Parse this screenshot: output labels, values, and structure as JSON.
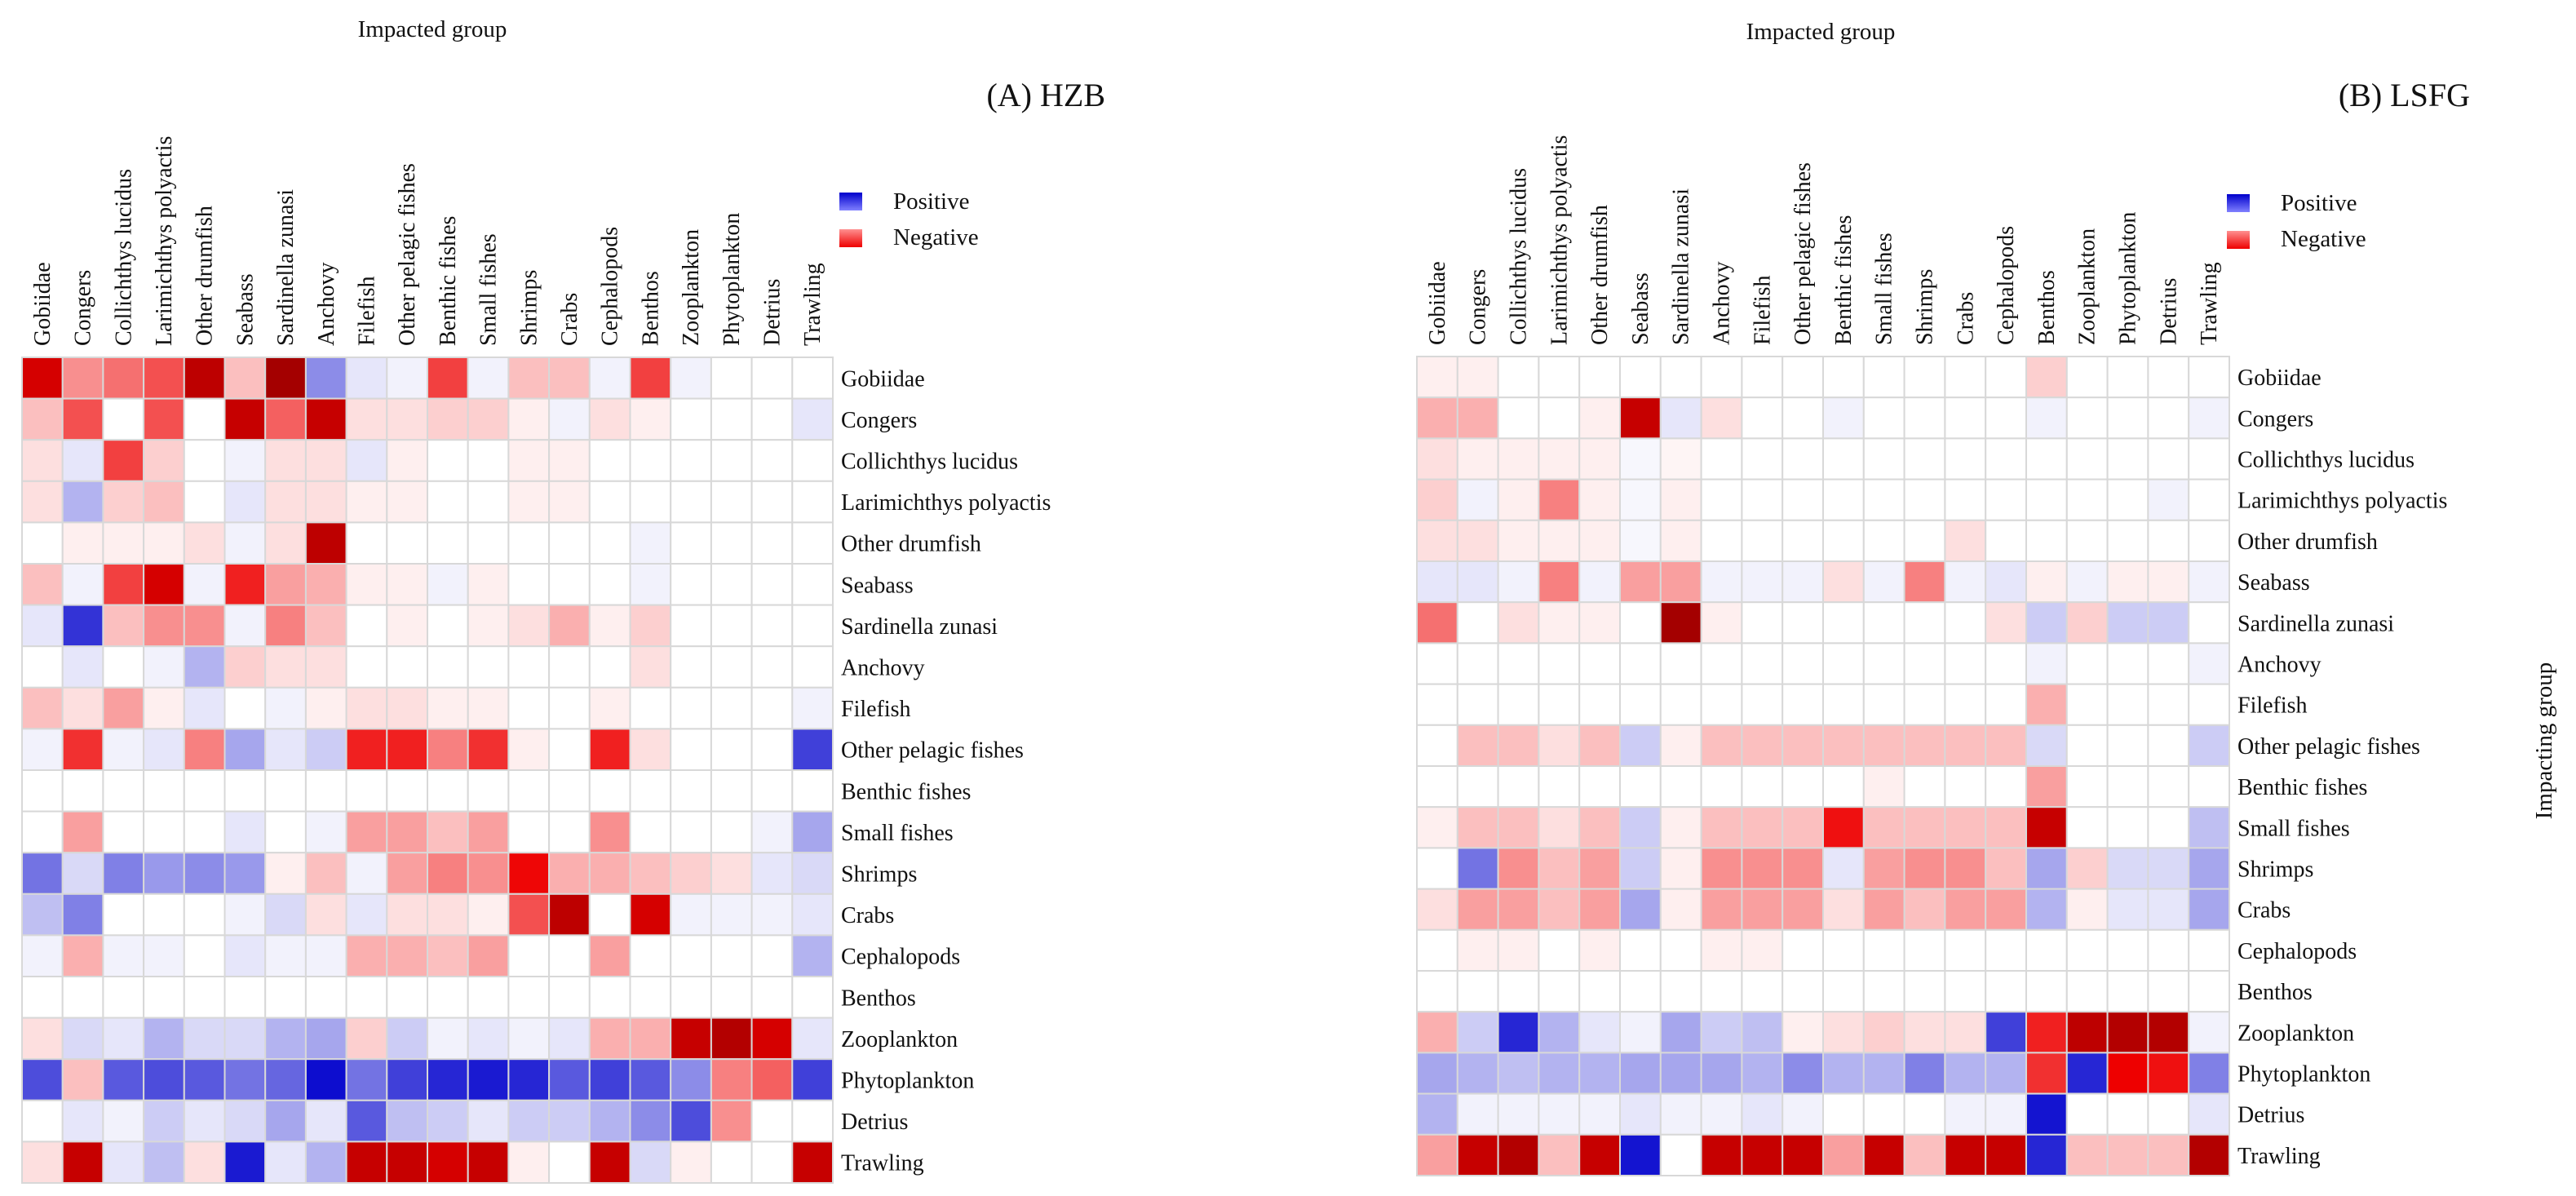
{
  "chart_data": [
    {
      "type": "heatmap",
      "panel_label": "(A) HZB",
      "x_title": "Impacted group",
      "y_title": "",
      "columns": [
        "Gobiidae",
        "Congers",
        "Collichthys lucidus",
        "Larimichthys polyactis",
        "Other drumfish",
        "Seabass",
        "Sardinella zunasi",
        "Anchovy",
        "Filefish",
        "Other pelagic fishes",
        "Benthic fishes",
        "Small fishes",
        "Shrimps",
        "Crabs",
        "Cephalopods",
        "Benthos",
        "Zooplankton",
        "Phytoplankton",
        "Detrius",
        "Trawling"
      ],
      "rows": [
        "Gobiidae",
        "Congers",
        "Collichthys lucidus",
        "Larimichthys polyactis",
        "Other drumfish",
        "Seabass",
        "Sardinella zunasi",
        "Anchovy",
        "Filefish",
        "Other pelagic fishes",
        "Benthic fishes",
        "Small fishes",
        "Shrimps",
        "Crabs",
        "Cephalopods",
        "Benthos",
        "Zooplankton",
        "Phytoplankton",
        "Detrius",
        "Trawling"
      ],
      "value_range": [
        -1,
        1
      ],
      "legend": {
        "positive": "Positive",
        "negative": "Negative",
        "placement": "top-right"
      },
      "colors": {
        "positive": "#0000cc",
        "negative": "#ee0000",
        "strong_negative": "#8b0000",
        "neutral": "#ffffff",
        "gridline": "#d8d8d8"
      },
      "values": [
        [
          -0.85,
          -0.35,
          -0.45,
          -0.55,
          -0.9,
          -0.2,
          -0.95,
          0.45,
          0.1,
          0.05,
          -0.6,
          0.05,
          -0.2,
          -0.2,
          0.05,
          -0.6,
          0.05,
          0,
          0,
          0
        ],
        [
          -0.2,
          -0.55,
          0,
          -0.55,
          0,
          -0.88,
          -0.5,
          -0.88,
          -0.1,
          -0.1,
          -0.15,
          -0.15,
          -0.05,
          0.05,
          -0.1,
          -0.05,
          0,
          0,
          0,
          0.1
        ],
        [
          -0.1,
          0.1,
          -0.6,
          -0.15,
          0,
          0.05,
          -0.1,
          -0.1,
          0.1,
          -0.05,
          0,
          0,
          -0.05,
          -0.05,
          0,
          0,
          0,
          0,
          0,
          0
        ],
        [
          -0.1,
          0.3,
          -0.15,
          -0.2,
          0,
          0.1,
          -0.1,
          -0.1,
          -0.05,
          -0.05,
          0,
          0,
          -0.05,
          -0.05,
          0,
          0,
          0,
          0,
          0,
          0
        ],
        [
          0,
          -0.05,
          -0.05,
          -0.05,
          -0.1,
          0.05,
          -0.1,
          -0.9,
          0,
          0,
          0,
          0,
          0,
          0,
          0,
          0.05,
          0,
          0,
          0,
          0
        ],
        [
          -0.2,
          0.05,
          -0.6,
          -0.85,
          0.05,
          -0.7,
          -0.3,
          -0.25,
          -0.05,
          -0.05,
          0.05,
          -0.05,
          0,
          0,
          0,
          0.05,
          0,
          0,
          0,
          0
        ],
        [
          0.1,
          0.8,
          -0.2,
          -0.35,
          -0.35,
          0.05,
          -0.4,
          -0.2,
          0,
          -0.05,
          0,
          -0.05,
          -0.1,
          -0.25,
          -0.05,
          -0.15,
          0,
          0,
          0,
          0
        ],
        [
          0,
          0.1,
          0,
          0.05,
          0.3,
          -0.15,
          -0.1,
          -0.1,
          0,
          0,
          0,
          0,
          0,
          0,
          0,
          -0.1,
          0,
          0,
          0,
          0
        ],
        [
          -0.2,
          -0.1,
          -0.3,
          -0.05,
          0.1,
          0,
          0.05,
          -0.05,
          -0.1,
          -0.1,
          -0.05,
          -0.05,
          0,
          0,
          -0.05,
          0,
          0,
          0,
          0,
          0.05
        ],
        [
          0.05,
          -0.65,
          0.05,
          0.1,
          -0.4,
          0.35,
          0.1,
          0.2,
          -0.7,
          -0.7,
          -0.4,
          -0.65,
          -0.05,
          0,
          -0.7,
          -0.1,
          0,
          0,
          0,
          0.75
        ],
        [
          0,
          0,
          0,
          0,
          0,
          0,
          0,
          0,
          0,
          0,
          0,
          0,
          0,
          0,
          0,
          0,
          0,
          0,
          0,
          0
        ],
        [
          0,
          -0.3,
          0,
          0,
          0,
          0.1,
          0,
          0.05,
          -0.3,
          -0.3,
          -0.2,
          -0.3,
          0,
          0,
          -0.35,
          0,
          0,
          0,
          0.05,
          0.35
        ],
        [
          0.55,
          0.15,
          0.5,
          0.4,
          0.45,
          0.4,
          -0.05,
          -0.2,
          0.05,
          -0.3,
          -0.4,
          -0.35,
          -0.78,
          -0.25,
          -0.25,
          -0.2,
          -0.15,
          -0.1,
          0.1,
          0.15
        ],
        [
          0.25,
          0.5,
          0,
          0,
          0,
          0.05,
          0.15,
          -0.1,
          0.1,
          -0.1,
          -0.1,
          -0.05,
          -0.55,
          -0.9,
          0,
          -0.85,
          0.05,
          0.05,
          0.05,
          0.1
        ],
        [
          0.05,
          -0.25,
          0.05,
          0.05,
          0,
          0.1,
          0.05,
          0.05,
          -0.25,
          -0.25,
          -0.2,
          -0.3,
          0,
          0,
          -0.3,
          0,
          0,
          0,
          0,
          0.3
        ],
        [
          0,
          0,
          0,
          0,
          0,
          0,
          0,
          0,
          0,
          0,
          0,
          0,
          0,
          0,
          0,
          0,
          0,
          0,
          0,
          0
        ],
        [
          -0.1,
          0.15,
          0.1,
          0.3,
          0.15,
          0.15,
          0.3,
          0.35,
          -0.15,
          0.2,
          0.05,
          0.1,
          0.05,
          0.1,
          -0.25,
          -0.25,
          -0.88,
          -0.92,
          -0.85,
          0.1
        ],
        [
          0.7,
          -0.2,
          0.65,
          0.7,
          0.65,
          0.55,
          0.6,
          0.95,
          0.55,
          0.75,
          0.85,
          0.9,
          0.85,
          0.65,
          0.75,
          0.65,
          0.45,
          -0.4,
          -0.5,
          0.75
        ],
        [
          0,
          0.1,
          0.05,
          0.2,
          0.1,
          0.15,
          0.35,
          0.1,
          0.65,
          0.25,
          0.2,
          0.1,
          0.2,
          0.2,
          0.3,
          0.45,
          0.7,
          -0.35,
          0,
          0
        ],
        [
          -0.1,
          -0.88,
          0.1,
          0.25,
          -0.1,
          0.9,
          0.1,
          0.3,
          -0.88,
          -0.88,
          -0.85,
          -0.88,
          -0.05,
          0,
          -0.88,
          0.15,
          -0.05,
          0,
          0,
          -0.88
        ]
      ]
    },
    {
      "type": "heatmap",
      "panel_label": "(B) LSFG",
      "x_title": "Impacted group",
      "y_title": "Impacting group",
      "columns": [
        "Gobiidae",
        "Congers",
        "Collichthys lucidus",
        "Larimichthys polyactis",
        "Other drumfish",
        "Seabass",
        "Sardinella zunasi",
        "Anchovy",
        "Filefish",
        "Other pelagic fishes",
        "Benthic fishes",
        "Small fishes",
        "Shrimps",
        "Crabs",
        "Cephalopods",
        "Benthos",
        "Zooplankton",
        "Phytoplankton",
        "Detrius",
        "Trawling"
      ],
      "rows": [
        "Gobiidae",
        "Congers",
        "Collichthys lucidus",
        "Larimichthys polyactis",
        "Other drumfish",
        "Seabass",
        "Sardinella zunasi",
        "Anchovy",
        "Filefish",
        "Other pelagic fishes",
        "Benthic fishes",
        "Small fishes",
        "Shrimps",
        "Crabs",
        "Cephalopods",
        "Benthos",
        "Zooplankton",
        "Phytoplankton",
        "Detrius",
        "Trawling"
      ],
      "value_range": [
        -1,
        1
      ],
      "legend": {
        "positive": "Positive",
        "negative": "Negative",
        "placement": "top-right"
      },
      "colors": {
        "positive": "#0000cc",
        "negative": "#ee0000",
        "strong_negative": "#8b0000",
        "neutral": "#ffffff",
        "gridline": "#d8d8d8"
      },
      "values": [
        [
          -0.05,
          -0.05,
          0,
          0,
          0,
          0,
          0,
          0,
          0,
          0,
          0,
          0,
          0,
          0,
          0,
          -0.15,
          0,
          0,
          0,
          0
        ],
        [
          -0.25,
          -0.25,
          0,
          0,
          -0.05,
          -0.88,
          0.1,
          -0.1,
          0,
          0,
          0.05,
          0,
          0,
          0,
          0,
          0.05,
          0,
          0,
          0,
          0.05
        ],
        [
          -0.1,
          -0.05,
          -0.05,
          -0.05,
          -0.05,
          0.03,
          -0.03,
          0,
          0,
          0,
          0,
          0,
          0,
          0,
          0,
          0,
          0,
          0,
          0,
          0
        ],
        [
          -0.15,
          0.05,
          -0.05,
          -0.4,
          -0.05,
          0.03,
          -0.05,
          0,
          0,
          0,
          0,
          0,
          0,
          0,
          0,
          0,
          0,
          0,
          0.05,
          0
        ],
        [
          -0.1,
          -0.1,
          -0.05,
          -0.05,
          -0.05,
          0.03,
          -0.05,
          0,
          0,
          0,
          0,
          0,
          0,
          -0.1,
          0,
          0,
          0,
          0,
          0,
          0
        ],
        [
          0.1,
          0.1,
          0.05,
          -0.4,
          0.05,
          -0.3,
          -0.3,
          0.05,
          0.05,
          0.05,
          -0.1,
          0.05,
          -0.4,
          0.05,
          0.1,
          -0.05,
          0.05,
          -0.05,
          -0.05,
          0.05
        ],
        [
          -0.45,
          0,
          -0.1,
          -0.05,
          -0.05,
          0,
          -0.95,
          -0.05,
          0,
          0,
          0,
          0,
          0,
          0,
          -0.1,
          0.2,
          -0.15,
          0.2,
          0.2,
          0
        ],
        [
          0,
          0,
          0,
          0,
          0,
          0,
          0,
          0,
          0,
          0,
          0,
          0,
          0,
          0,
          0,
          0.05,
          0,
          0,
          0,
          0.05
        ],
        [
          0,
          0,
          0,
          0,
          0,
          0,
          0,
          0,
          0,
          0,
          0,
          0,
          0,
          0,
          0,
          -0.25,
          0,
          0,
          0,
          0
        ],
        [
          0,
          -0.2,
          -0.2,
          -0.1,
          -0.2,
          0.2,
          -0.05,
          -0.2,
          -0.2,
          -0.2,
          -0.2,
          -0.2,
          -0.2,
          -0.2,
          -0.2,
          0.15,
          0,
          0,
          0,
          0.2
        ],
        [
          0,
          0,
          0,
          0,
          0,
          0,
          0,
          0,
          0,
          0,
          0,
          -0.05,
          0,
          0,
          0,
          -0.3,
          0,
          0,
          0,
          0
        ],
        [
          -0.05,
          -0.2,
          -0.2,
          -0.1,
          -0.2,
          0.2,
          -0.05,
          -0.2,
          -0.2,
          -0.2,
          -0.75,
          -0.2,
          -0.2,
          -0.2,
          -0.2,
          -0.88,
          0,
          0,
          0,
          0.25
        ],
        [
          0,
          0.55,
          -0.35,
          -0.2,
          -0.3,
          0.2,
          -0.05,
          -0.35,
          -0.35,
          -0.35,
          0.1,
          -0.3,
          -0.35,
          -0.35,
          -0.2,
          0.35,
          -0.15,
          0.15,
          0.15,
          0.35
        ],
        [
          -0.1,
          -0.3,
          -0.3,
          -0.2,
          -0.3,
          0.35,
          -0.05,
          -0.3,
          -0.3,
          -0.3,
          -0.1,
          -0.3,
          -0.2,
          -0.3,
          -0.3,
          0.3,
          -0.05,
          0.1,
          0.1,
          0.35
        ],
        [
          0,
          -0.05,
          -0.05,
          0,
          -0.05,
          0,
          0,
          -0.05,
          -0.05,
          0,
          0,
          0,
          0,
          0,
          0,
          0,
          0,
          0,
          0,
          0
        ],
        [
          0,
          0,
          0,
          0,
          0,
          0,
          0,
          0,
          0,
          0,
          0,
          0,
          0,
          0,
          0,
          0,
          0,
          0,
          0,
          0
        ],
        [
          -0.25,
          0.2,
          0.85,
          0.3,
          0.1,
          0.05,
          0.35,
          0.2,
          0.25,
          -0.05,
          -0.1,
          -0.15,
          -0.1,
          -0.1,
          0.75,
          -0.7,
          -0.9,
          -0.92,
          -0.92,
          0.05
        ],
        [
          0.35,
          0.3,
          0.25,
          0.3,
          0.3,
          0.35,
          0.35,
          0.35,
          0.3,
          0.45,
          0.3,
          0.3,
          0.5,
          0.3,
          0.3,
          -0.65,
          0.85,
          -0.8,
          -0.75,
          0.5
        ],
        [
          0.3,
          0.05,
          0.05,
          0.05,
          0.05,
          0.1,
          0.05,
          0.05,
          0.1,
          0.05,
          0,
          0,
          0,
          0.05,
          0.05,
          0.92,
          0,
          0,
          0,
          0.1
        ],
        [
          -0.3,
          -0.88,
          -0.92,
          -0.2,
          -0.88,
          0.92,
          0,
          -0.88,
          -0.88,
          -0.88,
          -0.3,
          -0.88,
          -0.2,
          -0.88,
          -0.88,
          0.85,
          -0.2,
          -0.2,
          -0.2,
          -0.92
        ]
      ]
    }
  ]
}
